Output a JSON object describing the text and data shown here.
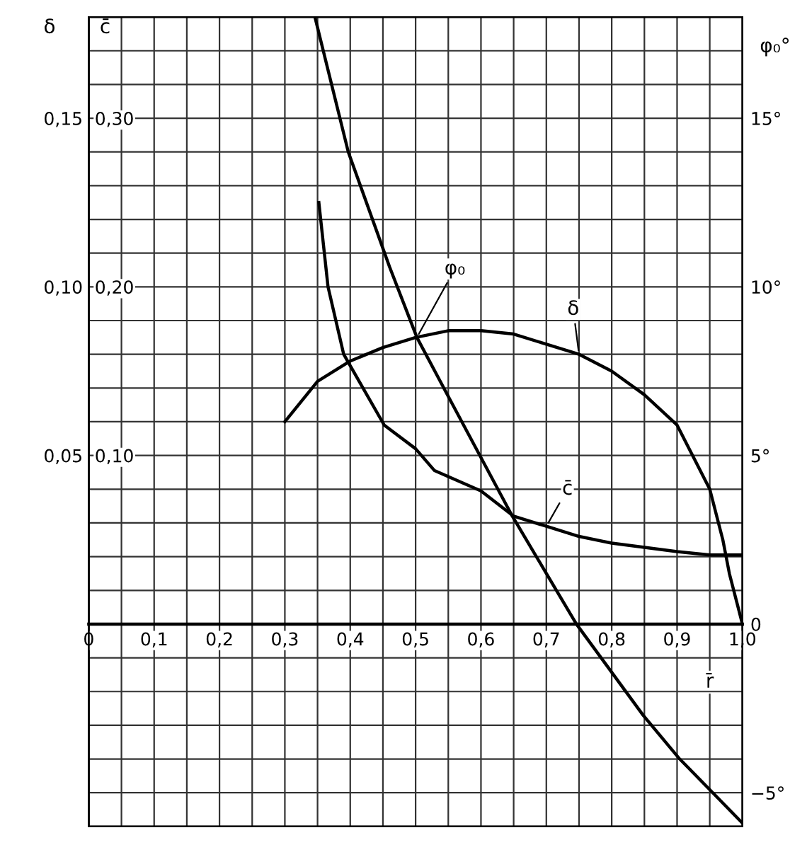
{
  "chart_data": {
    "type": "line",
    "xlabel": "r̄",
    "ylabel": "δ",
    "y2label": "c̄",
    "y3label": "φ₀°",
    "xlim": [
      0,
      1.0
    ],
    "ylim": [
      -0.06,
      0.18
    ],
    "y2lim": [
      -0.12,
      0.36
    ],
    "y3lim": [
      -6,
      18
    ],
    "xticks": [
      {
        "value": 0,
        "label": "0"
      },
      {
        "value": 0.05,
        "label": null
      },
      {
        "value": 0.1,
        "label": "0,1"
      },
      {
        "value": 0.15,
        "label": null
      },
      {
        "value": 0.2,
        "label": "0,2"
      },
      {
        "value": 0.25,
        "label": null
      },
      {
        "value": 0.3,
        "label": "0,3"
      },
      {
        "value": 0.35,
        "label": null
      },
      {
        "value": 0.4,
        "label": "0,4"
      },
      {
        "value": 0.45,
        "label": null
      },
      {
        "value": 0.5,
        "label": "0,5"
      },
      {
        "value": 0.55,
        "label": null
      },
      {
        "value": 0.6,
        "label": "0,6"
      },
      {
        "value": 0.65,
        "label": null
      },
      {
        "value": 0.7,
        "label": "0,7"
      },
      {
        "value": 0.75,
        "label": null
      },
      {
        "value": 0.8,
        "label": "0,8"
      },
      {
        "value": 0.85,
        "label": null
      },
      {
        "value": 0.9,
        "label": "0,9"
      },
      {
        "value": 0.95,
        "label": null
      },
      {
        "value": 1.0,
        "label": "1,0"
      }
    ],
    "yticks": [
      {
        "value": -0.05,
        "label": null
      },
      {
        "value": -0.04,
        "label": null
      },
      {
        "value": -0.03,
        "label": null
      },
      {
        "value": -0.02,
        "label": null
      },
      {
        "value": -0.01,
        "label": null
      },
      {
        "value": 0,
        "label": null
      },
      {
        "value": 0.01,
        "label": null
      },
      {
        "value": 0.02,
        "label": null
      },
      {
        "value": 0.03,
        "label": null
      },
      {
        "value": 0.04,
        "label": null
      },
      {
        "value": 0.05,
        "label": "0,05"
      },
      {
        "value": 0.06,
        "label": null
      },
      {
        "value": 0.07,
        "label": null
      },
      {
        "value": 0.08,
        "label": null
      },
      {
        "value": 0.09,
        "label": null
      },
      {
        "value": 0.1,
        "label": "0,10"
      },
      {
        "value": 0.11,
        "label": null
      },
      {
        "value": 0.12,
        "label": null
      },
      {
        "value": 0.13,
        "label": null
      },
      {
        "value": 0.14,
        "label": null
      },
      {
        "value": 0.15,
        "label": "0,15"
      },
      {
        "value": 0.16,
        "label": null
      },
      {
        "value": 0.17,
        "label": null
      }
    ],
    "y2ticks": [
      {
        "value": 0.1,
        "label": "0,10"
      },
      {
        "value": 0.2,
        "label": "0,20"
      },
      {
        "value": 0.3,
        "label": "0,30"
      }
    ],
    "y3ticks": [
      {
        "value": -5,
        "label": "−5°"
      },
      {
        "value": 0,
        "label": "0"
      },
      {
        "value": 5,
        "label": "5°"
      },
      {
        "value": 10,
        "label": "10°"
      },
      {
        "value": 15,
        "label": "15°"
      }
    ],
    "grid": true,
    "legend": false,
    "marker": "none",
    "line_style": "solid",
    "series": [
      {
        "name": "δ",
        "color": "#000000",
        "x": [
          0.3,
          0.35,
          0.4,
          0.45,
          0.5,
          0.55,
          0.6,
          0.65,
          0.7,
          0.75,
          0.8,
          0.85,
          0.9,
          0.95,
          0.97,
          0.98,
          1.0
        ],
        "values": [
          0.06,
          0.072,
          0.078,
          0.082,
          0.085,
          0.087,
          0.087,
          0.086,
          0.083,
          0.08,
          0.075,
          0.068,
          0.059,
          0.04,
          0.025,
          0.015,
          0
        ]
      },
      {
        "name": "c̄",
        "color": "#000000",
        "axis": "y2",
        "x": [
          0.352,
          0.366,
          0.39,
          0.452,
          0.5,
          0.529,
          0.6,
          0.65,
          0.7,
          0.75,
          0.8,
          0.9,
          0.95,
          1.0
        ],
        "values": [
          0.25,
          0.2,
          0.16,
          0.118,
          0.104,
          0.091,
          0.079,
          0.064,
          0.058,
          0.052,
          0.048,
          0.043,
          0.041,
          0.041
        ]
      },
      {
        "name": "φ₀",
        "color": "#000000",
        "axis": "y3",
        "x": [
          0.346,
          0.397,
          0.46,
          0.502,
          0.55,
          0.648,
          0.746,
          0.848,
          0.904,
          1.0
        ],
        "values": [
          18,
          14,
          10.6,
          8.5,
          6.75,
          3.2,
          0,
          -2.7,
          -4,
          -5.9
        ]
      }
    ]
  }
}
